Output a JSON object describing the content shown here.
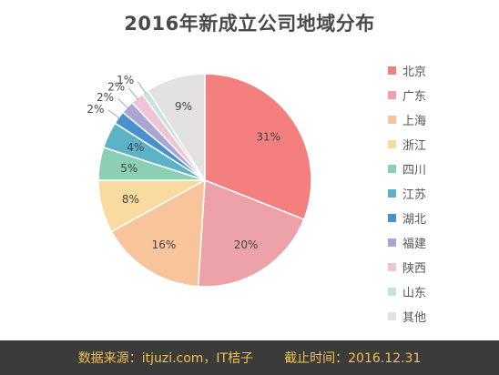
{
  "chart_data": {
    "type": "pie",
    "title": "2016年新成立公司地域分布",
    "categories": [
      "北京",
      "广东",
      "上海",
      "浙江",
      "四川",
      "江苏",
      "湖北",
      "福建",
      "陕西",
      "山东",
      "其他"
    ],
    "values": [
      31,
      20,
      16,
      8,
      5,
      4,
      2,
      2,
      2,
      1,
      9
    ],
    "data_labels": [
      "31%",
      "20%",
      "16%",
      "8%",
      "5%",
      "4%",
      "2%",
      "2%",
      "2%",
      "1%",
      "9%"
    ],
    "colors": [
      "#f47f7f",
      "#eda1a8",
      "#f8c49c",
      "#f9dba0",
      "#8ccfb5",
      "#5cb3c8",
      "#4a90cf",
      "#a9a6d4",
      "#f1c3d6",
      "#c3e5da",
      "#e3e1e1"
    ],
    "legend_position": "right",
    "unit": "%"
  },
  "footer": {
    "source": "数据来源：itjuzi.com，IT桔子",
    "cutoff": "截止时间：2016.12.31"
  }
}
